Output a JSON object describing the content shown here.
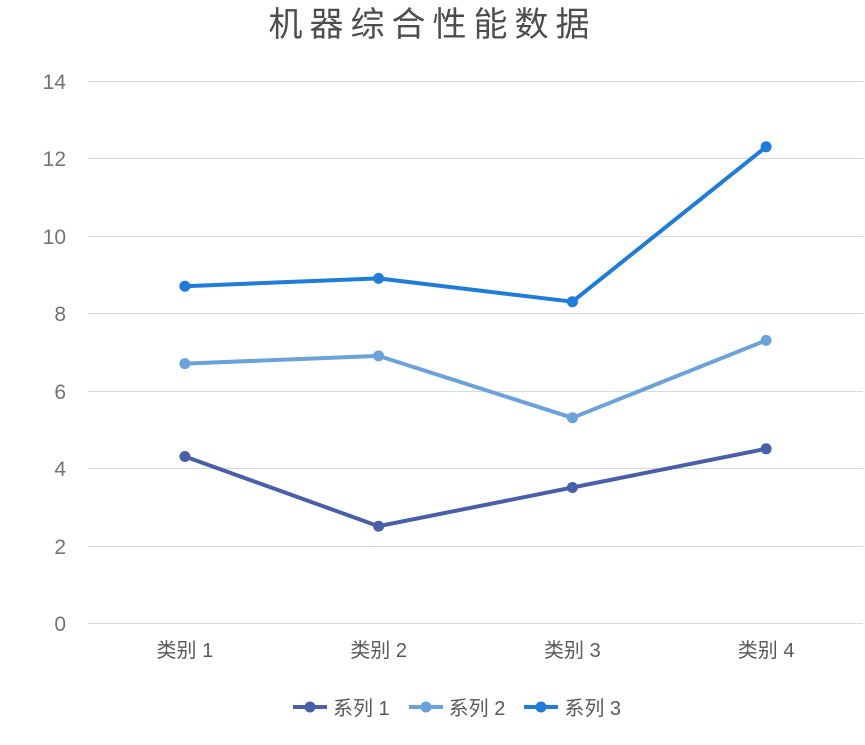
{
  "page": {
    "background": "#ffffff"
  },
  "chart_data": {
    "type": "line",
    "title": "机器综合性能数据",
    "categories": [
      "类别 1",
      "类别 2",
      "类别 3",
      "类别 4"
    ],
    "series": [
      {
        "name": "系列 1",
        "color": "#4A5FA9",
        "values": [
          4.3,
          2.5,
          3.5,
          4.5
        ]
      },
      {
        "name": "系列 2",
        "color": "#6CA2DA",
        "values": [
          6.7,
          6.9,
          5.3,
          7.3
        ]
      },
      {
        "name": "系列 3",
        "color": "#1F7CD9",
        "values": [
          8.7,
          8.9,
          8.3,
          12.3
        ]
      }
    ],
    "y_axis": {
      "min": 0,
      "max": 14,
      "step": 2,
      "tick_labels": [
        "0",
        "2",
        "4",
        "6",
        "8",
        "10",
        "12",
        "14"
      ]
    },
    "grid": "horizontal",
    "gridline_color": "#D9D9D9",
    "legend_position": "bottom",
    "text_colors": {
      "title": "#4D4D4D",
      "ticks": "#737373",
      "categories": "#595959",
      "legend": "#595959"
    }
  }
}
